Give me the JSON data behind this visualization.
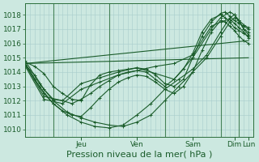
{
  "xlabel": "Pression niveau de la mer( hPa )",
  "bg_color": "#cce8e0",
  "grid_color": "#a8cccc",
  "line_color": "#1a5c2a",
  "ylim": [
    1009.5,
    1018.8
  ],
  "yticks": [
    1010,
    1011,
    1012,
    1013,
    1014,
    1015,
    1016,
    1017,
    1018
  ],
  "day_labels": [
    "Jeu",
    "Ven",
    "Sam",
    "Dim",
    "Lun"
  ],
  "day_positions": [
    24,
    48,
    72,
    90,
    96
  ],
  "day_sep_positions": [
    12,
    36,
    60,
    84,
    92
  ],
  "xlim": [
    0,
    98
  ],
  "lines": [
    {
      "x": [
        0,
        4,
        8,
        12,
        16,
        20,
        24,
        28,
        32,
        36,
        40,
        44,
        48,
        52,
        56,
        60,
        64,
        68,
        72,
        76,
        80,
        84,
        86,
        88,
        90,
        92,
        94,
        96
      ],
      "y": [
        1014.7,
        1014.4,
        1013.9,
        1013.0,
        1012.5,
        1012.1,
        1012.0,
        1013.1,
        1013.8,
        1014.0,
        1014.1,
        1014.2,
        1014.3,
        1014.2,
        1013.8,
        1013.2,
        1013.0,
        1013.5,
        1015.0,
        1016.5,
        1017.5,
        1018.1,
        1018.2,
        1017.9,
        1017.6,
        1017.4,
        1017.2,
        1017.0
      ]
    },
    {
      "x": [
        0,
        4,
        8,
        12,
        16,
        20,
        24,
        28,
        32,
        36,
        40,
        44,
        48,
        52,
        56,
        60,
        64,
        68,
        72,
        76,
        80,
        84,
        86,
        88,
        90,
        92,
        94,
        96
      ],
      "y": [
        1014.5,
        1013.8,
        1012.8,
        1012.1,
        1012.0,
        1011.8,
        1012.1,
        1012.5,
        1013.0,
        1013.4,
        1013.8,
        1014.0,
        1014.1,
        1014.0,
        1013.5,
        1013.0,
        1013.5,
        1014.2,
        1015.3,
        1016.8,
        1017.7,
        1018.0,
        1017.8,
        1017.5,
        1017.1,
        1016.9,
        1016.7,
        1016.5
      ]
    },
    {
      "x": [
        0,
        4,
        8,
        12,
        16,
        20,
        24,
        28,
        32,
        36,
        40,
        44,
        48,
        52,
        56,
        60,
        64,
        68,
        72,
        76,
        80,
        84,
        86,
        88,
        90,
        92,
        94,
        96
      ],
      "y": [
        1014.6,
        1013.5,
        1012.5,
        1011.8,
        1011.3,
        1011.0,
        1010.9,
        1011.5,
        1012.2,
        1012.8,
        1013.3,
        1013.6,
        1013.8,
        1013.7,
        1013.3,
        1012.8,
        1012.5,
        1013.0,
        1014.0,
        1015.5,
        1016.8,
        1017.6,
        1017.5,
        1017.2,
        1016.9,
        1016.5,
        1016.2,
        1016.0
      ]
    },
    {
      "x": [
        0,
        6,
        12,
        18,
        24,
        30,
        36,
        42,
        48,
        54,
        60,
        66,
        72,
        78,
        84,
        88,
        90,
        92,
        94,
        96
      ],
      "y": [
        1014.8,
        1013.2,
        1012.0,
        1011.2,
        1010.8,
        1010.5,
        1010.3,
        1010.2,
        1010.5,
        1011.0,
        1012.0,
        1013.0,
        1014.0,
        1015.0,
        1016.5,
        1017.5,
        1017.8,
        1017.6,
        1017.3,
        1017.1
      ]
    },
    {
      "x": [
        0,
        6,
        12,
        18,
        24,
        30,
        36,
        42,
        48,
        54,
        60,
        66,
        72,
        78,
        84,
        88,
        90,
        92,
        94,
        96
      ],
      "y": [
        1014.6,
        1013.0,
        1011.8,
        1011.0,
        1010.5,
        1010.2,
        1010.1,
        1010.3,
        1011.0,
        1011.8,
        1012.8,
        1013.5,
        1014.2,
        1015.2,
        1016.8,
        1017.8,
        1018.0,
        1017.6,
        1017.0,
        1016.6
      ]
    },
    {
      "x": [
        0,
        8,
        16,
        24,
        32,
        40,
        48,
        56,
        64,
        72,
        80,
        84,
        88,
        90,
        92,
        94,
        96
      ],
      "y": [
        1014.5,
        1012.3,
        1012.0,
        1013.2,
        1013.6,
        1014.0,
        1014.3,
        1013.9,
        1013.5,
        1015.0,
        1017.0,
        1017.8,
        1018.2,
        1018.0,
        1017.5,
        1017.0,
        1016.8
      ]
    },
    {
      "x": [
        0,
        8,
        16,
        24,
        32,
        40,
        48,
        56,
        64,
        72,
        80,
        84,
        88,
        90,
        92,
        94,
        96
      ],
      "y": [
        1014.4,
        1012.1,
        1011.8,
        1012.8,
        1013.3,
        1013.8,
        1014.1,
        1014.4,
        1014.6,
        1015.2,
        1017.2,
        1017.5,
        1017.7,
        1017.4,
        1017.1,
        1016.8,
        1016.4
      ]
    },
    {
      "x": [
        0,
        96
      ],
      "y": [
        1014.6,
        1016.2
      ]
    },
    {
      "x": [
        0,
        96
      ],
      "y": [
        1014.6,
        1015.0
      ]
    }
  ],
  "marker": "+",
  "markersize": 3,
  "linewidth": 0.8,
  "xlabel_fontsize": 8,
  "tick_fontsize": 6.5,
  "tick_color": "#1a5c2a",
  "axis_color": "#2a6e3a",
  "sep_color": "#2a6e3a"
}
